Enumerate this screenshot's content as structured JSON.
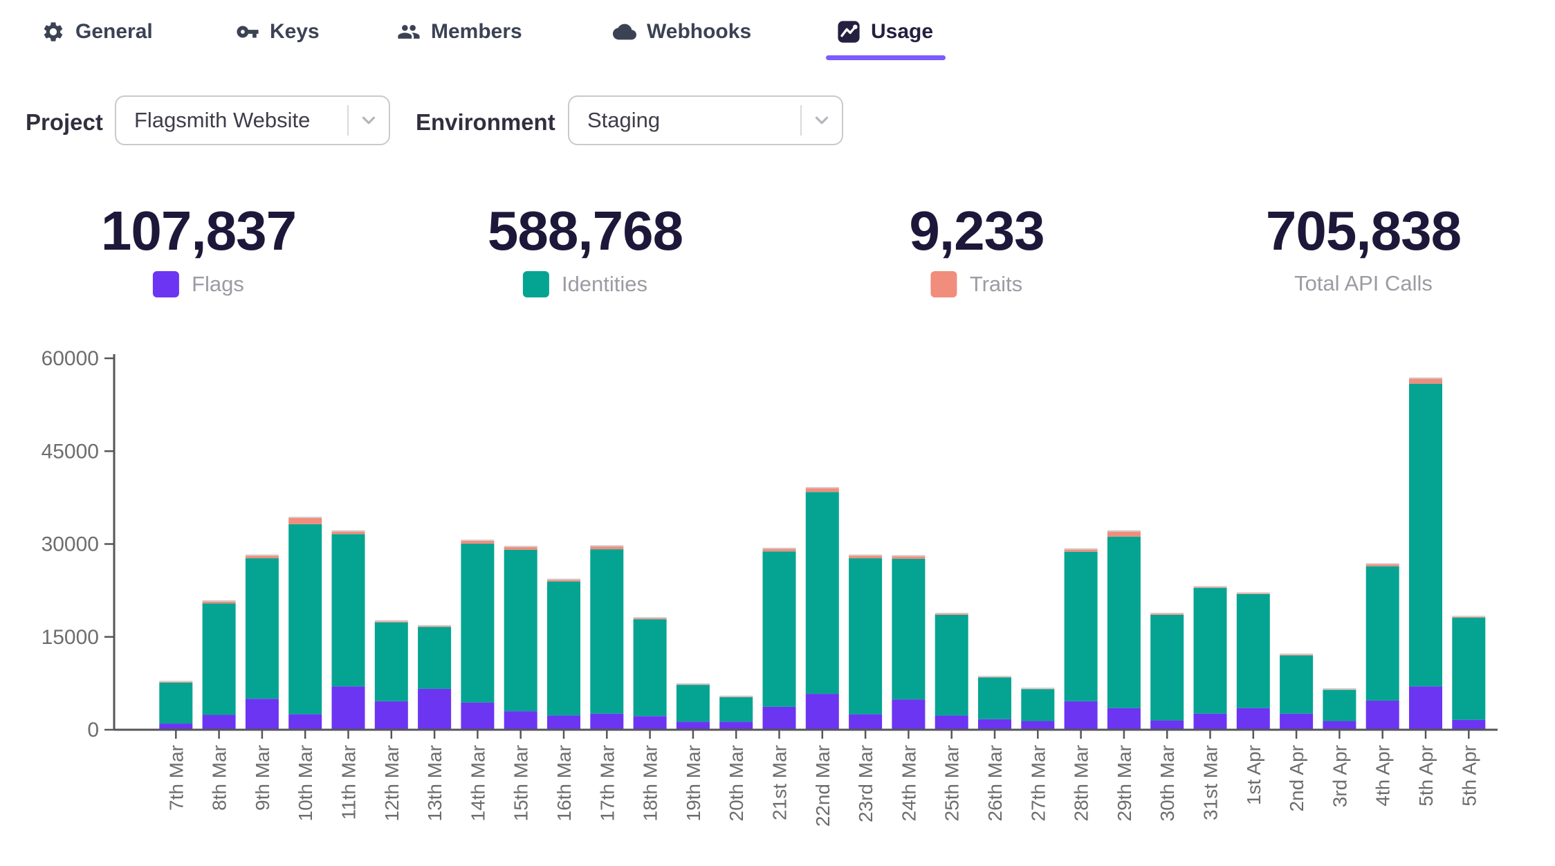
{
  "tabs": [
    {
      "icon": "gear-icon",
      "label": "General",
      "active": false
    },
    {
      "icon": "key-icon",
      "label": "Keys",
      "active": false
    },
    {
      "icon": "members-icon",
      "label": "Members",
      "active": false
    },
    {
      "icon": "cloud-icon",
      "label": "Webhooks",
      "active": false
    },
    {
      "icon": "chart-icon",
      "label": "Usage",
      "active": true
    }
  ],
  "controls": {
    "project_label": "Project",
    "project_value": "Flagsmith Website",
    "environment_label": "Environment",
    "environment_value": "Staging"
  },
  "stats": [
    {
      "value": "107,837",
      "label": "Flags",
      "swatch": "#6c35f2"
    },
    {
      "value": "588,768",
      "label": "Identities",
      "swatch": "#05a492"
    },
    {
      "value": "9,233",
      "label": "Traits",
      "swatch": "#f08d7c"
    },
    {
      "value": "705,838",
      "label": "Total API Calls",
      "swatch": null
    }
  ],
  "colors": {
    "flags": "#6c35f2",
    "identities": "#05a492",
    "traits": "#f08d7c",
    "axis_line": "#55565a",
    "axis_text": "#6d6d6d",
    "bar_cap": "#cdc8c8",
    "tab_underline": "#7c5cfc"
  },
  "chart_data": {
    "type": "bar",
    "stacked": true,
    "title": "",
    "xlabel": "",
    "ylabel": "",
    "ylim": [
      0,
      60000
    ],
    "y_ticks": [
      0,
      15000,
      30000,
      45000,
      60000
    ],
    "grid": false,
    "legend_position": "above-chart-as-stat-cards",
    "categories": [
      "7th Mar",
      "8th Mar",
      "9th Mar",
      "10th Mar",
      "11th Mar",
      "12th Mar",
      "13th Mar",
      "14th Mar",
      "15th Mar",
      "16th Mar",
      "17th Mar",
      "18th Mar",
      "19th Mar",
      "20th Mar",
      "21st Mar",
      "22nd Mar",
      "23rd Mar",
      "24th Mar",
      "25th Mar",
      "26th Mar",
      "27th Mar",
      "28th Mar",
      "29th Mar",
      "30th Mar",
      "31st Mar",
      "1st Apr",
      "2nd Apr",
      "3rd Apr",
      "4th Apr",
      "5th Apr",
      "5th Apr"
    ],
    "series": [
      {
        "name": "Flags",
        "color": "#6c35f2",
        "values": [
          1000,
          2400,
          5000,
          2500,
          7000,
          4600,
          6600,
          4400,
          3000,
          2300,
          2600,
          2200,
          1300,
          1300,
          3700,
          5800,
          2500,
          4900,
          2300,
          1700,
          1400,
          4600,
          3500,
          1500,
          2600,
          3500,
          2600,
          1400,
          4700,
          7000,
          1600
        ]
      },
      {
        "name": "Identities",
        "color": "#05a492",
        "values": [
          6600,
          18000,
          22700,
          30700,
          24600,
          12750,
          10000,
          25650,
          26050,
          21650,
          26550,
          15650,
          5950,
          3950,
          25100,
          32600,
          25200,
          22700,
          16250,
          6750,
          5150,
          24150,
          27700,
          17050,
          20300,
          18400,
          9400,
          5050,
          21700,
          48900,
          16500
        ]
      },
      {
        "name": "Traits",
        "color": "#f08d7c",
        "values": [
          100,
          300,
          400,
          1000,
          400,
          150,
          100,
          450,
          450,
          250,
          450,
          150,
          50,
          50,
          400,
          600,
          400,
          400,
          150,
          50,
          50,
          350,
          800,
          150,
          100,
          100,
          100,
          50,
          300,
          800,
          100
        ]
      }
    ]
  }
}
